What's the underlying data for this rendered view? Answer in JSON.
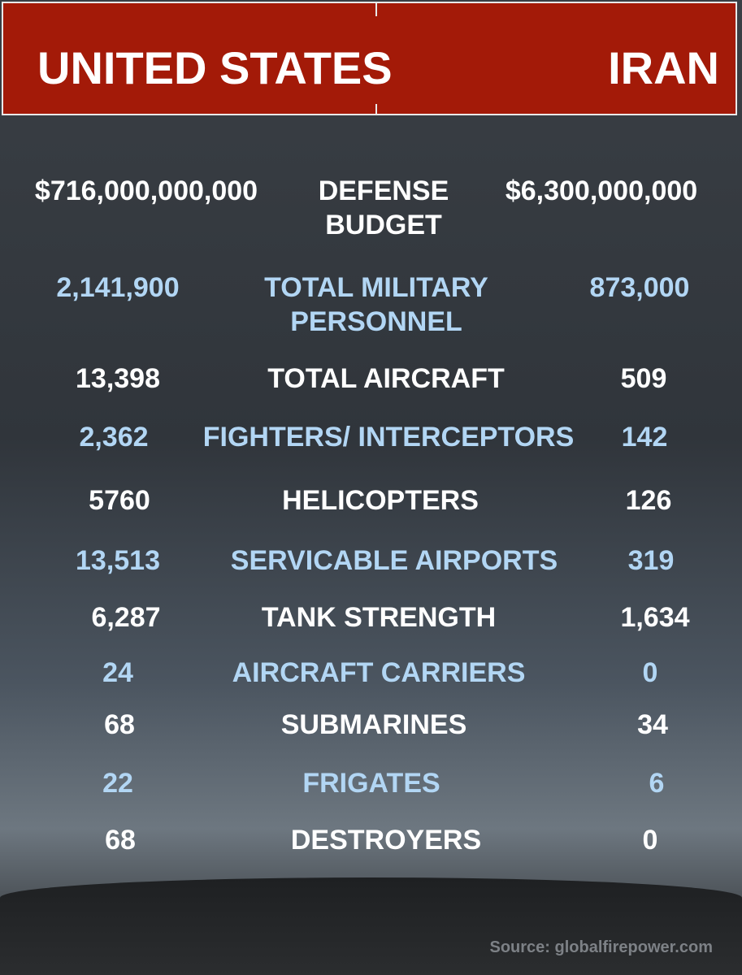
{
  "header": {
    "left": "UNITED STATES",
    "right": "IRAN"
  },
  "rows": [
    {
      "us": "$716,000,000,000",
      "label": "DEFENSE BUDGET",
      "iran": "$6,300,000,000"
    },
    {
      "us": "2,141,900",
      "label": "TOTAL MILITARY PERSONNEL",
      "iran": "873,000"
    },
    {
      "us": "13,398",
      "label": "TOTAL AIRCRAFT",
      "iran": "509"
    },
    {
      "us": "2,362",
      "label": "FIGHTERS/ INTERCEPTORS",
      "iran": "142"
    },
    {
      "us": "5760",
      "label": "HELICOPTERS",
      "iran": "126"
    },
    {
      "us": "13,513",
      "label": "SERVICABLE AIRPORTS",
      "iran": "319"
    },
    {
      "us": "6,287",
      "label": "TANK STRENGTH",
      "iran": "1,634"
    },
    {
      "us": "24",
      "label": "AIRCRAFT CARRIERS",
      "iran": "0"
    },
    {
      "us": "68",
      "label": "SUBMARINES",
      "iran": "34"
    },
    {
      "us": "22",
      "label": "FRIGATES",
      "iran": "6"
    },
    {
      "us": "68",
      "label": "DESTROYERS",
      "iran": "0"
    }
  ],
  "source": "Source: globalfirepower.com"
}
